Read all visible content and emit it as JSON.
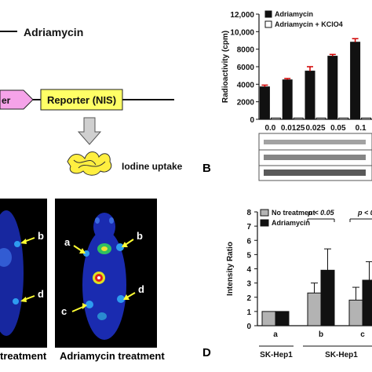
{
  "panelA": {
    "legend_text": "Adriamycin",
    "promoter_label": "er",
    "reporter_label": "Reporter (NIS)",
    "iodine_label": "Iodine uptake"
  },
  "panelB": {
    "letter": "B"
  },
  "panelC": {
    "left_label": "treatment",
    "right_label": "Adriamycin treatment",
    "arrow_labels": [
      "b",
      "d",
      "a",
      "b",
      "c",
      "d"
    ]
  },
  "panelD": {
    "letter": "D",
    "sig1": "p < 0.05",
    "sig2": "p < 0"
  },
  "chart_data": [
    {
      "type": "bar",
      "ylabel": "Radioactivity (cpm)",
      "categories": [
        "0.0",
        "0.0125",
        "0.025",
        "0.05",
        "0.1"
      ],
      "category_labels": [
        "0.0",
        "0.0125",
        "0.025",
        "0.05",
        "0.1"
      ],
      "ylim": [
        0,
        12000
      ],
      "yticks": [
        0,
        2000,
        4000,
        6000,
        8000,
        10000,
        12000
      ],
      "ytick_labels": [
        "0",
        "2000",
        "4000",
        "6000",
        "8000",
        "10,000",
        "12,000"
      ],
      "legend": "top-left",
      "series": [
        {
          "name": "Adriamycin",
          "color": "#111111",
          "values": [
            3700,
            4500,
            5500,
            7200,
            8800
          ],
          "errors": [
            200,
            150,
            500,
            200,
            400
          ]
        },
        {
          "name": "Adriamycin + KClO4",
          "color": "#ffffff",
          "values": [
            150,
            150,
            150,
            150,
            150
          ],
          "errors": [
            0,
            0,
            0,
            0,
            0
          ]
        }
      ]
    },
    {
      "type": "bar",
      "ylabel": "Intensity Ratio",
      "categories": [
        "a",
        "b",
        "c"
      ],
      "group_labels": [
        "SK-Hep1",
        "SK-Hep1"
      ],
      "ylim": [
        0,
        8
      ],
      "yticks": [
        0,
        1,
        2,
        3,
        4,
        5,
        6,
        7,
        8
      ],
      "ytick_labels": [
        "0",
        "1",
        "2",
        "3",
        "4",
        "5",
        "6",
        "7",
        "8"
      ],
      "legend": "top-left",
      "series": [
        {
          "name": "No treatment",
          "color": "#b3b3b3",
          "values": [
            1.0,
            2.3,
            1.8
          ],
          "errors": [
            0,
            0.7,
            0.9
          ]
        },
        {
          "name": "Adriamycin",
          "color": "#111111",
          "values": [
            1.0,
            3.9,
            3.2
          ],
          "errors": [
            0,
            1.5,
            1.3
          ]
        }
      ]
    }
  ]
}
